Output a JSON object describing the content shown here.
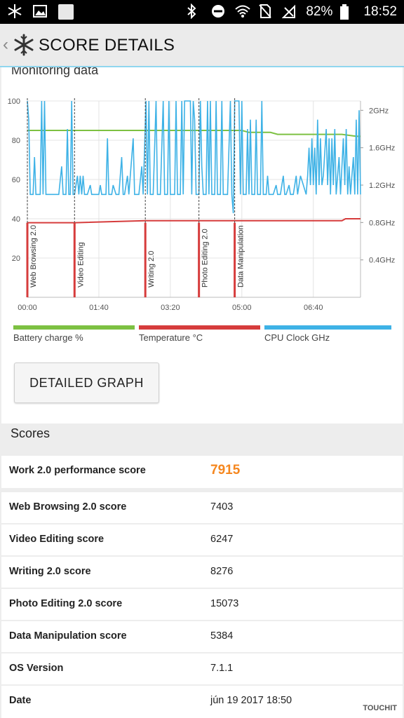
{
  "status_bar": {
    "battery": "82%",
    "time": "18:52"
  },
  "header": {
    "title": "SCORE DETAILS"
  },
  "monitoring": {
    "title": "Monitoring data"
  },
  "chart_data": {
    "type": "line",
    "x_ticks": [
      "00:00",
      "01:40",
      "03:20",
      "05:00",
      "06:40"
    ],
    "y_left_ticks": [
      "100",
      "80",
      "60",
      "40",
      "20"
    ],
    "y_right_ticks": [
      "2GHz",
      "1.6GHz",
      "1.2GHz",
      "0.8GHz",
      "0.4GHz"
    ],
    "ylim_left": [
      0,
      100
    ],
    "ylim_right": [
      0,
      2.1
    ],
    "xlim_seconds": [
      0,
      466
    ],
    "grid": true,
    "phase_markers": [
      {
        "label": "Web Browsing 2.0",
        "t": 0
      },
      {
        "label": "Video Editing",
        "t": 66
      },
      {
        "label": "Writing 2.0",
        "t": 165
      },
      {
        "label": "Photo Editing 2.0",
        "t": 240
      },
      {
        "label": "Data Manipulation",
        "t": 290
      }
    ],
    "series": [
      {
        "name": "Battery charge %",
        "color": "#7dc142",
        "points": [
          [
            0,
            85
          ],
          [
            145,
            85
          ],
          [
            270,
            85
          ],
          [
            280,
            85
          ],
          [
            300,
            85
          ],
          [
            310,
            84
          ],
          [
            340,
            84
          ],
          [
            350,
            83
          ],
          [
            440,
            83
          ],
          [
            460,
            82
          ],
          [
            466,
            82
          ]
        ]
      },
      {
        "name": "Temperature °C",
        "color": "#d63c3c",
        "points": [
          [
            0,
            38
          ],
          [
            66,
            38
          ],
          [
            67,
            38
          ],
          [
            165,
            39
          ],
          [
            166,
            39
          ],
          [
            290,
            39
          ],
          [
            291,
            39
          ],
          [
            440,
            39
          ],
          [
            445,
            40
          ],
          [
            466,
            40
          ]
        ]
      },
      {
        "name": "CPU Clock GHz",
        "color": "#3eb2e6",
        "points": [
          [
            0,
            2.1
          ],
          [
            2,
            1.9
          ],
          [
            4,
            1.1
          ],
          [
            8,
            1.1
          ],
          [
            10,
            1.5
          ],
          [
            12,
            1.1
          ],
          [
            18,
            1.1
          ],
          [
            20,
            2.1
          ],
          [
            22,
            1.1
          ],
          [
            24,
            2.1
          ],
          [
            26,
            1.1
          ],
          [
            40,
            1.1
          ],
          [
            44,
            1.1
          ],
          [
            48,
            1.4
          ],
          [
            50,
            1.1
          ],
          [
            54,
            1.1
          ],
          [
            56,
            1.8
          ],
          [
            58,
            1.1
          ],
          [
            60,
            1.1
          ],
          [
            62,
            2.1
          ],
          [
            64,
            1.1
          ],
          [
            66,
            1.1
          ],
          [
            70,
            1.3
          ],
          [
            72,
            1.1
          ],
          [
            74,
            1.3
          ],
          [
            76,
            1.1
          ],
          [
            78,
            1.3
          ],
          [
            80,
            1.1
          ],
          [
            84,
            1.1
          ],
          [
            88,
            1.2
          ],
          [
            90,
            1.1
          ],
          [
            100,
            1.1
          ],
          [
            102,
            1.2
          ],
          [
            104,
            1.1
          ],
          [
            110,
            1.1
          ],
          [
            112,
            1.7
          ],
          [
            114,
            1.1
          ],
          [
            118,
            1.1
          ],
          [
            120,
            1.2
          ],
          [
            124,
            1.1
          ],
          [
            128,
            1.1
          ],
          [
            132,
            1.5
          ],
          [
            134,
            1.1
          ],
          [
            136,
            1.1
          ],
          [
            140,
            1.3
          ],
          [
            142,
            1.1
          ],
          [
            148,
            1.7
          ],
          [
            150,
            1.1
          ],
          [
            156,
            1.1
          ],
          [
            160,
            1.4
          ],
          [
            162,
            1.1
          ],
          [
            166,
            2.1
          ],
          [
            168,
            1.1
          ],
          [
            170,
            2.1
          ],
          [
            172,
            1.1
          ],
          [
            176,
            1.1
          ],
          [
            180,
            2.1
          ],
          [
            182,
            1.1
          ],
          [
            186,
            1.1
          ],
          [
            190,
            2.1
          ],
          [
            192,
            1.1
          ],
          [
            196,
            1.1
          ],
          [
            198,
            2.1
          ],
          [
            200,
            1.1
          ],
          [
            206,
            1.1
          ],
          [
            208,
            2.1
          ],
          [
            210,
            1.1
          ],
          [
            214,
            1.1
          ],
          [
            216,
            2.1
          ],
          [
            218,
            1.1
          ],
          [
            220,
            2.1
          ],
          [
            228,
            2.1
          ],
          [
            230,
            1.1
          ],
          [
            232,
            2.1
          ],
          [
            234,
            1.9
          ],
          [
            236,
            1.1
          ],
          [
            240,
            1.1
          ],
          [
            242,
            2.1
          ],
          [
            244,
            1.4
          ],
          [
            246,
            1.1
          ],
          [
            250,
            1.1
          ],
          [
            252,
            2.1
          ],
          [
            254,
            1.1
          ],
          [
            256,
            2.1
          ],
          [
            258,
            1.1
          ],
          [
            262,
            1.1
          ],
          [
            264,
            2.1
          ],
          [
            266,
            1.1
          ],
          [
            270,
            1.1
          ],
          [
            272,
            2.1
          ],
          [
            274,
            1.1
          ],
          [
            280,
            1.1
          ],
          [
            284,
            2.1
          ],
          [
            286,
            1.1
          ],
          [
            288,
            0.9
          ],
          [
            290,
            2.1
          ],
          [
            296,
            2.1
          ],
          [
            298,
            1.1
          ],
          [
            300,
            2.1
          ],
          [
            302,
            1.1
          ],
          [
            306,
            1.1
          ],
          [
            308,
            1.8
          ],
          [
            310,
            1.1
          ],
          [
            312,
            1.9
          ],
          [
            314,
            1.1
          ],
          [
            318,
            1.1
          ],
          [
            320,
            1.9
          ],
          [
            322,
            1.1
          ],
          [
            326,
            1.1
          ],
          [
            328,
            2.1
          ],
          [
            330,
            1.1
          ],
          [
            334,
            1.1
          ],
          [
            336,
            1.3
          ],
          [
            338,
            1.1
          ],
          [
            342,
            1.1
          ],
          [
            344,
            1.1
          ],
          [
            348,
            1.2
          ],
          [
            350,
            1.1
          ],
          [
            354,
            1.1
          ],
          [
            358,
            1.3
          ],
          [
            360,
            1.1
          ],
          [
            362,
            1.1
          ],
          [
            366,
            1.2
          ],
          [
            368,
            1.1
          ],
          [
            372,
            1.1
          ],
          [
            376,
            1.3
          ],
          [
            378,
            1.1
          ],
          [
            382,
            1.3
          ],
          [
            386,
            1.2
          ],
          [
            390,
            1.1
          ],
          [
            392,
            1.3
          ],
          [
            394,
            1.6
          ],
          [
            396,
            1.2
          ],
          [
            398,
            1.7
          ],
          [
            400,
            1.2
          ],
          [
            402,
            1.6
          ],
          [
            404,
            1.1
          ],
          [
            406,
            1.9
          ],
          [
            408,
            1.2
          ],
          [
            410,
            1.7
          ],
          [
            412,
            1.2
          ],
          [
            414,
            1.3
          ],
          [
            418,
            1.8
          ],
          [
            420,
            1.2
          ],
          [
            422,
            1.7
          ],
          [
            424,
            1.1
          ],
          [
            426,
            1.7
          ],
          [
            428,
            1.2
          ],
          [
            430,
            1.8
          ],
          [
            432,
            1.1
          ],
          [
            436,
            1.5
          ],
          [
            438,
            1.1
          ],
          [
            442,
            1.7
          ],
          [
            444,
            1.2
          ],
          [
            446,
            1.8
          ],
          [
            448,
            1.1
          ],
          [
            450,
            1.4
          ],
          [
            452,
            1.1
          ],
          [
            456,
            1.5
          ],
          [
            458,
            1.1
          ],
          [
            460,
            1.9
          ],
          [
            462,
            1.1
          ],
          [
            464,
            2.0
          ],
          [
            466,
            1.1
          ]
        ]
      }
    ]
  },
  "legend": {
    "battery": "Battery charge %",
    "temperature": "Temperature °C",
    "cpu": "CPU Clock GHz"
  },
  "colors": {
    "battery": "#7dc142",
    "temperature": "#d63c3c",
    "cpu": "#3eb2e6",
    "accent_score": "#f5871f"
  },
  "button": {
    "label": "DETAILED GRAPH"
  },
  "scores": {
    "title": "Scores",
    "rows": [
      {
        "label": "Work 2.0 performance score",
        "value": "7915"
      },
      {
        "label": "Web Browsing 2.0 score",
        "value": "7403"
      },
      {
        "label": "Video Editing score",
        "value": "6247"
      },
      {
        "label": "Writing 2.0 score",
        "value": "8276"
      },
      {
        "label": "Photo Editing 2.0 score",
        "value": "15073"
      },
      {
        "label": "Data Manipulation score",
        "value": "5384"
      },
      {
        "label": "OS Version",
        "value": "7.1.1"
      },
      {
        "label": "Date",
        "value": "jún 19 2017 18:50"
      }
    ]
  },
  "watermark": {
    "text": "TOUCHIT"
  }
}
